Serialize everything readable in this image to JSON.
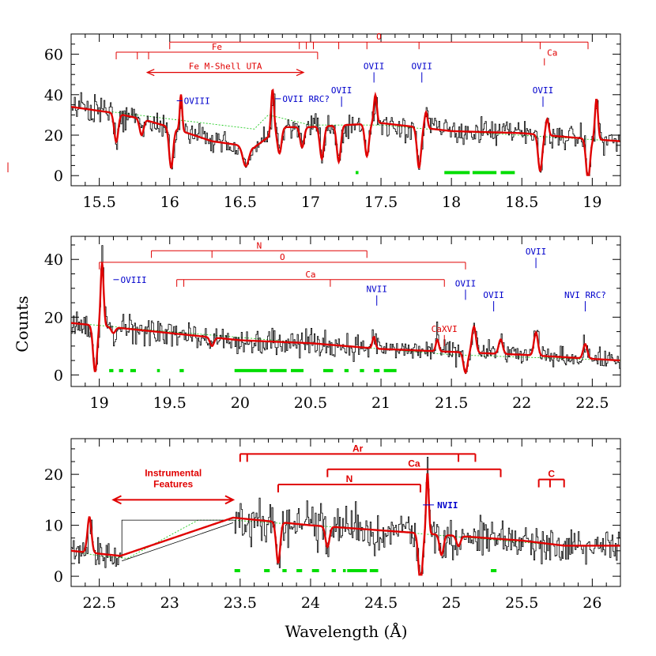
{
  "figure": {
    "ylabel": "Counts",
    "xlabel": "Wavelength (Å)"
  },
  "colors": {
    "data": "#000000",
    "model": "#e00000",
    "continuum": "#22cc22",
    "gaps": "#00dd00",
    "line_labels": "#0000cc",
    "brackets": "#e00000"
  },
  "chart_data": [
    {
      "type": "line",
      "panel": 1,
      "xlim": [
        15.3,
        19.2
      ],
      "ylim": [
        -5,
        70
      ],
      "xticks": [
        15.5,
        16,
        16.5,
        17,
        17.5,
        18,
        18.5,
        19
      ],
      "xtick_labels": [
        "15.5",
        "16",
        "16.5",
        "17",
        "17.5",
        "18",
        "18.5",
        "19"
      ],
      "yticks": [
        0,
        20,
        40,
        60
      ],
      "ytick_labels": [
        "0",
        "20",
        "40",
        "60"
      ],
      "series": [
        {
          "name": "data",
          "style": "histogram"
        },
        {
          "name": "model",
          "style": "line",
          "continuum": 33,
          "x": [
            15.3,
            15.6,
            15.8,
            16.0,
            16.3,
            16.6,
            16.8,
            17.0,
            17.5,
            18.0,
            18.5,
            19.0,
            19.2
          ],
          "y": [
            34,
            31,
            28,
            24,
            17,
            14,
            24,
            24,
            26,
            22,
            21,
            18,
            17
          ]
        },
        {
          "name": "continuum",
          "style": "dotted",
          "x": [
            15.3,
            16.0,
            16.6,
            16.7,
            17.0,
            17.5,
            18.0,
            19.2
          ],
          "y": [
            34,
            28,
            23,
            30,
            25,
            25,
            22,
            17
          ]
        }
      ],
      "features": [
        {
          "x": 15.62,
          "depth": 14,
          "width": 0.02
        },
        {
          "x": 15.8,
          "depth": 8,
          "width": 0.02
        },
        {
          "x": 16.01,
          "depth": 20,
          "width": 0.02
        },
        {
          "x": 16.02,
          "depth": -18,
          "width": 0.012,
          "shift": 0.06
        },
        {
          "x": 16.54,
          "depth": 10,
          "width": 0.03
        },
        {
          "x": 16.73,
          "depth": -22,
          "width": 0.015
        },
        {
          "x": 16.78,
          "depth": 12,
          "width": 0.02
        },
        {
          "x": 16.94,
          "depth": 10,
          "width": 0.02
        },
        {
          "x": 17.08,
          "depth": 16,
          "width": 0.02
        },
        {
          "x": 17.2,
          "depth": 18,
          "width": 0.02
        },
        {
          "x": 17.4,
          "depth": 16,
          "width": 0.02
        },
        {
          "x": 17.4,
          "depth": -14,
          "width": 0.015,
          "shift": 0.06
        },
        {
          "x": 17.77,
          "depth": 20,
          "width": 0.02
        },
        {
          "x": 17.77,
          "depth": -8,
          "width": 0.015,
          "shift": 0.05
        },
        {
          "x": 18.63,
          "depth": 18,
          "width": 0.02
        },
        {
          "x": 18.63,
          "depth": -8,
          "width": 0.015,
          "shift": 0.05
        },
        {
          "x": 18.97,
          "depth": 20,
          "width": 0.02
        },
        {
          "x": 18.97,
          "depth": -20,
          "width": 0.015,
          "shift": 0.06
        }
      ],
      "gaps": [
        [
          17.32,
          17.34
        ],
        [
          17.95,
          18.13
        ],
        [
          18.15,
          18.32
        ],
        [
          18.35,
          18.45
        ]
      ],
      "brackets": [
        {
          "label": "Fe",
          "x0": 15.62,
          "x1": 17.05,
          "level": 61,
          "ticks": [
            15.62,
            15.77,
            15.85,
            17.05
          ]
        },
        {
          "label": "O",
          "x0": 16.0,
          "x1": 18.97,
          "level": 66,
          "ticks": [
            16.0,
            16.92,
            16.97,
            17.02,
            17.2,
            17.4,
            17.77,
            18.63,
            18.97
          ]
        },
        {
          "label": "Ca",
          "x0": 18.66,
          "x1": 18.66,
          "level": 58,
          "ticks": [
            18.66
          ]
        }
      ],
      "line_labels": [
        {
          "label": "OVII",
          "x": 17.22,
          "peak": 30
        },
        {
          "label": "OVII",
          "x": 17.45,
          "peak": 42
        },
        {
          "label": "OVII",
          "x": 17.79,
          "peak": 42
        },
        {
          "label": "OVII",
          "x": 18.65,
          "peak": 30
        }
      ],
      "side_labels": [
        {
          "label": "OVIII",
          "x": 16.05,
          "y": 37
        },
        {
          "label": "OVII RRC?",
          "x": 16.75,
          "y": 38
        }
      ],
      "arrow": {
        "label": "Fe M-Shell UTA",
        "x0": 15.84,
        "x1": 16.95,
        "level": 51
      }
    },
    {
      "type": "line",
      "panel": 2,
      "xlim": [
        18.8,
        22.7
      ],
      "ylim": [
        -4,
        48
      ],
      "xticks": [
        19,
        19.5,
        20,
        20.5,
        21,
        21.5,
        22,
        22.5
      ],
      "xtick_labels": [
        "19",
        "19.5",
        "20",
        "20.5",
        "21",
        "21.5",
        "22",
        "22.5"
      ],
      "yticks": [
        0,
        20,
        40
      ],
      "ytick_labels": [
        "0",
        "20",
        "40"
      ],
      "series": [
        {
          "name": "data",
          "style": "histogram"
        },
        {
          "name": "model",
          "style": "line",
          "x": [
            18.8,
            19.2,
            19.6,
            20.0,
            20.5,
            21.0,
            21.5,
            22.0,
            22.7
          ],
          "y": [
            18,
            16,
            14,
            12,
            11,
            9,
            8,
            7,
            5
          ]
        },
        {
          "name": "continuum",
          "style": "dotted",
          "x": [
            18.8,
            19.5,
            20.5,
            21.5,
            22.7
          ],
          "y": [
            18,
            15,
            11,
            7,
            5
          ]
        }
      ],
      "features": [
        {
          "x": 18.97,
          "depth": 16,
          "width": 0.02
        },
        {
          "x": 19.0,
          "depth": -22,
          "width": 0.015,
          "shift": 0.02
        },
        {
          "x": 19.1,
          "depth": 2,
          "width": 0.02
        },
        {
          "x": 19.8,
          "depth": 3,
          "width": 0.02
        },
        {
          "x": 20.95,
          "depth": -4,
          "width": 0.015
        },
        {
          "x": 21.4,
          "depth": -4,
          "width": 0.015
        },
        {
          "x": 21.6,
          "depth": 7,
          "width": 0.02
        },
        {
          "x": 21.65,
          "depth": -9,
          "width": 0.02,
          "shift": 0.01
        },
        {
          "x": 21.85,
          "depth": -5,
          "width": 0.02
        },
        {
          "x": 22.1,
          "depth": -8,
          "width": 0.02
        },
        {
          "x": 22.45,
          "depth": -5,
          "width": 0.02
        }
      ],
      "gaps": [
        [
          19.07,
          19.1
        ],
        [
          19.14,
          19.17
        ],
        [
          19.22,
          19.26
        ],
        [
          19.41,
          19.43
        ],
        [
          19.57,
          19.6
        ],
        [
          19.96,
          20.19
        ],
        [
          20.21,
          20.33
        ],
        [
          20.36,
          20.45
        ],
        [
          20.59,
          20.66
        ],
        [
          20.74,
          20.77
        ],
        [
          20.85,
          20.88
        ],
        [
          20.95,
          20.99
        ],
        [
          21.02,
          21.11
        ]
      ],
      "brackets": [
        {
          "label": "N",
          "x0": 19.37,
          "x1": 20.9,
          "level": 43,
          "ticks": [
            19.37,
            19.8,
            20.9
          ]
        },
        {
          "label": "O",
          "x0": 19.0,
          "x1": 21.6,
          "level": 39,
          "ticks": [
            19.0,
            21.6
          ]
        },
        {
          "label": "Ca",
          "x0": 19.55,
          "x1": 21.45,
          "level": 33,
          "ticks": [
            19.55,
            19.6,
            20.64,
            21.45
          ]
        }
      ],
      "line_labels": [
        {
          "label": "NVII",
          "x": 20.97,
          "peak": 20
        },
        {
          "label": "OVII",
          "x": 21.6,
          "peak": 22
        },
        {
          "label": "OVII",
          "x": 21.8,
          "peak": 18
        },
        {
          "label": "OVII",
          "x": 22.1,
          "peak": 33
        },
        {
          "label": "NVI RRC?",
          "x": 22.45,
          "peak": 18
        }
      ],
      "red_labels": [
        {
          "label": "CaXVI",
          "x": 21.45,
          "peak": 10
        }
      ],
      "side_labels": [
        {
          "label": "OVIII",
          "x": 19.1,
          "y": 33
        }
      ]
    },
    {
      "type": "line",
      "panel": 3,
      "xlim": [
        22.3,
        26.2
      ],
      "ylim": [
        -2,
        27
      ],
      "xticks": [
        22.5,
        23,
        23.5,
        24,
        24.5,
        25,
        25.5,
        26
      ],
      "xtick_labels": [
        "22.5",
        "23",
        "23.5",
        "24",
        "24.5",
        "25",
        "25.5",
        "26"
      ],
      "yticks": [
        0,
        10,
        20
      ],
      "ytick_labels": [
        "0",
        "10",
        "20"
      ],
      "series": [
        {
          "name": "data",
          "style": "histogram"
        },
        {
          "name": "model",
          "style": "line",
          "x": [
            22.3,
            22.65,
            23.45,
            24.0,
            24.5,
            25.0,
            25.5,
            25.8
          ],
          "y": [
            5,
            4,
            11.5,
            10,
            9,
            8,
            7,
            6
          ]
        },
        {
          "name": "continuum",
          "style": "dotted",
          "x": [
            22.3,
            22.5,
            22.7,
            23.2,
            23.45,
            24.0,
            24.5,
            25.8
          ],
          "y": [
            5,
            4,
            3.5,
            11,
            11,
            10,
            9,
            6
          ]
        }
      ],
      "features": [
        {
          "x": 22.43,
          "depth": -7,
          "width": 0.02
        },
        {
          "x": 23.77,
          "depth": 8,
          "width": 0.02
        },
        {
          "x": 24.12,
          "depth": 4,
          "width": 0.02
        },
        {
          "x": 24.78,
          "depth": 10,
          "width": 0.02
        },
        {
          "x": 24.78,
          "depth": -12,
          "width": 0.013,
          "shift": 0.05
        },
        {
          "x": 24.93,
          "depth": 4,
          "width": 0.02
        },
        {
          "x": 25.05,
          "depth": 2,
          "width": 0.02
        }
      ],
      "gaps": [
        [
          23.46,
          23.5
        ],
        [
          23.67,
          23.71
        ],
        [
          23.8,
          23.83
        ],
        [
          23.9,
          23.94
        ],
        [
          24.01,
          24.06
        ],
        [
          24.15,
          24.18
        ],
        [
          24.23,
          24.25
        ],
        [
          24.26,
          24.4
        ],
        [
          24.42,
          24.48
        ],
        [
          25.28,
          25.32
        ]
      ],
      "brackets": [
        {
          "label": "Ar",
          "x0": 23.5,
          "x1": 25.17,
          "level": 24,
          "ticks": [
            23.5,
            23.55,
            25.05,
            25.17
          ]
        },
        {
          "label": "Ca",
          "x0": 24.12,
          "x1": 25.35,
          "level": 21,
          "ticks": [
            24.12,
            25.35
          ]
        },
        {
          "label": "N",
          "x0": 23.77,
          "x1": 24.78,
          "level": 18,
          "ticks": [
            23.77,
            24.78
          ]
        },
        {
          "label": "C",
          "x0": 25.62,
          "x1": 25.8,
          "level": 19,
          "ticks": [
            25.62,
            25.7,
            25.8
          ]
        }
      ],
      "blue_labels": [
        {
          "label": "NVII",
          "x": 24.82,
          "y": 14
        }
      ],
      "instrumental": {
        "label1": "Instrumental",
        "label2": "Features",
        "x0": 22.6,
        "x1": 23.45,
        "level": 15
      }
    }
  ]
}
